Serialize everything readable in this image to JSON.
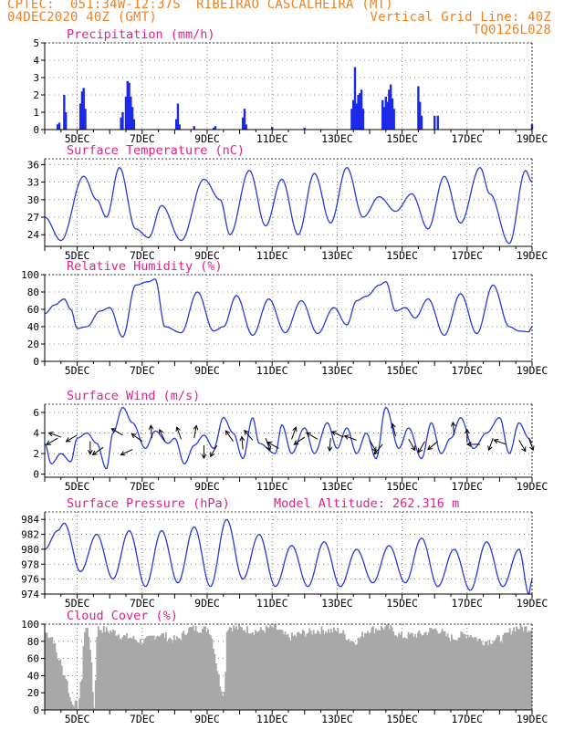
{
  "header": {
    "line1_left": "CPTEC:  051:34W-12:37S  RIBEIRAO CASCALHEIRA (MT)",
    "line2_left": "04DEC2020 40Z (GMT)",
    "line2_right": "Vertical Grid Line: 40Z",
    "line3_right": "TQ0126L028"
  },
  "colors": {
    "header": "#f08020",
    "panel_title": "#e0208c",
    "line": "#2a3ad8",
    "bar": "#1a2ae8",
    "cloud": "#a8a8a8",
    "arrow": "#000000"
  },
  "chart_data": [
    {
      "id": "precip",
      "type": "bar",
      "title": "Precipitation (mm/h)",
      "x_tick_labels": [
        "5DEC",
        "7DEC",
        "9DEC",
        "11DEC",
        "13DEC",
        "15DEC",
        "17DEC",
        "19DEC"
      ],
      "x_range_days": [
        4.0,
        19.0
      ],
      "ylim": [
        0,
        5
      ],
      "yticks": [
        0,
        1,
        2,
        3,
        4,
        5
      ],
      "bars": [
        [
          4.4,
          0.3
        ],
        [
          4.45,
          0.4
        ],
        [
          4.6,
          2.0
        ],
        [
          4.65,
          1.0
        ],
        [
          5.1,
          1.5
        ],
        [
          5.15,
          2.2
        ],
        [
          5.2,
          2.4
        ],
        [
          5.25,
          1.2
        ],
        [
          6.35,
          0.7
        ],
        [
          6.4,
          1.0
        ],
        [
          6.5,
          1.9
        ],
        [
          6.55,
          2.8
        ],
        [
          6.6,
          2.7
        ],
        [
          6.65,
          1.9
        ],
        [
          6.7,
          1.3
        ],
        [
          6.75,
          0.6
        ],
        [
          8.05,
          0.6
        ],
        [
          8.1,
          1.5
        ],
        [
          8.15,
          0.3
        ],
        [
          8.6,
          0.2
        ],
        [
          9.2,
          0.1
        ],
        [
          9.25,
          0.2
        ],
        [
          10.1,
          0.7
        ],
        [
          10.15,
          1.2
        ],
        [
          10.2,
          0.3
        ],
        [
          11.0,
          0.15
        ],
        [
          12.0,
          0.1
        ],
        [
          13.45,
          1.2
        ],
        [
          13.5,
          1.7
        ],
        [
          13.55,
          3.6
        ],
        [
          13.6,
          1.5
        ],
        [
          13.65,
          2.0
        ],
        [
          13.7,
          2.1
        ],
        [
          13.75,
          2.3
        ],
        [
          13.8,
          1.2
        ],
        [
          14.4,
          1.7
        ],
        [
          14.45,
          1.3
        ],
        [
          14.5,
          1.9
        ],
        [
          14.55,
          1.6
        ],
        [
          14.6,
          2.3
        ],
        [
          14.65,
          2.6
        ],
        [
          14.7,
          1.8
        ],
        [
          14.75,
          1.2
        ],
        [
          15.5,
          2.5
        ],
        [
          15.55,
          1.6
        ],
        [
          15.6,
          0.8
        ],
        [
          16.0,
          0.8
        ],
        [
          16.1,
          0.8
        ],
        [
          19.0,
          0.3
        ]
      ]
    },
    {
      "id": "temp",
      "type": "line",
      "title": "Surface Temperature (nC)",
      "x_tick_labels": [
        "5DEC",
        "7DEC",
        "9DEC",
        "11DEC",
        "13DEC",
        "15DEC",
        "17DEC",
        "19DEC"
      ],
      "x_range_days": [
        4.0,
        19.0
      ],
      "ylim": [
        22,
        37
      ],
      "yticks": [
        24,
        27,
        30,
        33,
        36
      ],
      "extrema": [
        [
          4.0,
          27
        ],
        [
          4.5,
          23
        ],
        [
          5.2,
          34
        ],
        [
          5.6,
          30
        ],
        [
          5.9,
          27
        ],
        [
          6.3,
          35.5
        ],
        [
          6.8,
          25
        ],
        [
          7.2,
          23.5
        ],
        [
          7.6,
          29
        ],
        [
          8.2,
          23
        ],
        [
          8.9,
          33.5
        ],
        [
          9.4,
          30
        ],
        [
          9.7,
          24
        ],
        [
          10.3,
          35
        ],
        [
          10.8,
          25.5
        ],
        [
          11.3,
          33.5
        ],
        [
          11.8,
          24
        ],
        [
          12.3,
          34.5
        ],
        [
          12.8,
          26
        ],
        [
          13.3,
          35.5
        ],
        [
          13.8,
          27
        ],
        [
          14.3,
          30.5
        ],
        [
          14.8,
          28
        ],
        [
          15.3,
          31
        ],
        [
          15.8,
          25
        ],
        [
          16.3,
          34
        ],
        [
          16.8,
          26
        ],
        [
          17.4,
          35.5
        ],
        [
          17.7,
          31
        ],
        [
          18.3,
          22.5
        ],
        [
          18.8,
          35
        ],
        [
          19.0,
          33
        ]
      ]
    },
    {
      "id": "rh",
      "type": "line",
      "title": "Relative Humidity (%)",
      "x_tick_labels": [
        "5DEC",
        "7DEC",
        "9DEC",
        "11DEC",
        "13DEC",
        "15DEC",
        "17DEC",
        "19DEC"
      ],
      "x_range_days": [
        4.0,
        19.0
      ],
      "ylim": [
        0,
        100
      ],
      "yticks": [
        0,
        20,
        40,
        60,
        80,
        100
      ],
      "extrema": [
        [
          4.0,
          55
        ],
        [
          4.3,
          65
        ],
        [
          4.6,
          72
        ],
        [
          4.8,
          60
        ],
        [
          5.0,
          38
        ],
        [
          5.3,
          40
        ],
        [
          5.7,
          58
        ],
        [
          6.0,
          62
        ],
        [
          6.4,
          28
        ],
        [
          6.8,
          88
        ],
        [
          7.2,
          92
        ],
        [
          7.4,
          95
        ],
        [
          7.7,
          40
        ],
        [
          8.2,
          33
        ],
        [
          8.7,
          80
        ],
        [
          9.2,
          35
        ],
        [
          9.5,
          40
        ],
        [
          9.9,
          76
        ],
        [
          10.4,
          30
        ],
        [
          10.9,
          72
        ],
        [
          11.4,
          33
        ],
        [
          11.9,
          70
        ],
        [
          12.4,
          32
        ],
        [
          12.9,
          62
        ],
        [
          13.3,
          42
        ],
        [
          13.6,
          70
        ],
        [
          13.9,
          75
        ],
        [
          14.3,
          88
        ],
        [
          14.5,
          92
        ],
        [
          14.8,
          58
        ],
        [
          15.1,
          62
        ],
        [
          15.4,
          50
        ],
        [
          15.8,
          72
        ],
        [
          16.3,
          30
        ],
        [
          16.8,
          78
        ],
        [
          17.3,
          32
        ],
        [
          17.8,
          88
        ],
        [
          18.3,
          40
        ],
        [
          18.6,
          35
        ],
        [
          18.9,
          34
        ],
        [
          19.0,
          40
        ]
      ]
    },
    {
      "id": "wind",
      "type": "line",
      "title": "Surface Wind (m/s)",
      "x_tick_labels": [
        "5DEC",
        "7DEC",
        "9DEC",
        "11DEC",
        "13DEC",
        "15DEC",
        "17DEC",
        "19DEC"
      ],
      "x_range_days": [
        4.0,
        19.0
      ],
      "ylim": [
        -0.3,
        6.8
      ],
      "yticks": [
        0,
        2,
        4,
        6
      ],
      "extrema": [
        [
          4.0,
          3.0
        ],
        [
          4.2,
          1.0
        ],
        [
          4.5,
          2.0
        ],
        [
          4.8,
          1.2
        ],
        [
          5.0,
          3.5
        ],
        [
          5.3,
          4.0
        ],
        [
          5.6,
          3.0
        ],
        [
          5.9,
          0.5
        ],
        [
          6.1,
          4.0
        ],
        [
          6.4,
          6.5
        ],
        [
          6.7,
          5.0
        ],
        [
          7.1,
          2.5
        ],
        [
          7.4,
          4.2
        ],
        [
          7.8,
          3.0
        ],
        [
          8.0,
          3.5
        ],
        [
          8.3,
          1.0
        ],
        [
          8.6,
          2.8
        ],
        [
          8.9,
          3.8
        ],
        [
          9.2,
          2.5
        ],
        [
          9.5,
          5.5
        ],
        [
          9.8,
          4.0
        ],
        [
          10.1,
          1.5
        ],
        [
          10.4,
          5.5
        ],
        [
          10.6,
          3.0
        ],
        [
          11.1,
          2.0
        ],
        [
          11.3,
          4.8
        ],
        [
          11.6,
          2.0
        ],
        [
          12.0,
          4.5
        ],
        [
          12.3,
          2.0
        ],
        [
          12.7,
          5.0
        ],
        [
          13.0,
          2.5
        ],
        [
          13.3,
          4.5
        ],
        [
          13.6,
          2.0
        ],
        [
          13.9,
          4.0
        ],
        [
          14.2,
          1.5
        ],
        [
          14.5,
          6.5
        ],
        [
          14.9,
          2.5
        ],
        [
          15.2,
          4.5
        ],
        [
          15.6,
          1.5
        ],
        [
          15.9,
          5.0
        ],
        [
          16.2,
          2.0
        ],
        [
          16.5,
          3.5
        ],
        [
          16.8,
          5.5
        ],
        [
          17.2,
          2.5
        ],
        [
          17.6,
          4.0
        ],
        [
          18.0,
          5.5
        ],
        [
          18.3,
          2.0
        ],
        [
          18.6,
          5.0
        ],
        [
          18.9,
          3.5
        ],
        [
          19.0,
          3.0
        ]
      ],
      "vectors": [
        [
          4.4,
          3.5,
          210
        ],
        [
          4.5,
          3.6,
          160
        ],
        [
          5.0,
          3.8,
          210
        ],
        [
          5.4,
          3.2,
          270
        ],
        [
          5.8,
          2.6,
          215
        ],
        [
          6.4,
          3.8,
          150
        ],
        [
          6.7,
          2.4,
          205
        ],
        [
          7.0,
          3.2,
          145
        ],
        [
          7.3,
          3.5,
          95
        ],
        [
          7.7,
          3.2,
          115
        ],
        [
          8.2,
          3.4,
          110
        ],
        [
          8.6,
          3.5,
          80
        ],
        [
          8.9,
          2.8,
          270
        ],
        [
          9.3,
          2.8,
          240
        ],
        [
          9.8,
          3.2,
          125
        ],
        [
          10.1,
          2.4,
          95
        ],
        [
          10.4,
          3.3,
          130
        ],
        [
          10.8,
          3.5,
          290
        ],
        [
          11.2,
          2.5,
          150
        ],
        [
          11.6,
          3.4,
          70
        ],
        [
          12.0,
          3.6,
          215
        ],
        [
          12.4,
          3.4,
          150
        ],
        [
          12.8,
          3.5,
          265
        ],
        [
          13.2,
          3.6,
          155
        ],
        [
          13.6,
          3.3,
          160
        ],
        [
          14.0,
          3.3,
          300
        ],
        [
          14.4,
          2.9,
          230
        ],
        [
          14.8,
          3.7,
          105
        ],
        [
          15.2,
          3.4,
          300
        ],
        [
          15.7,
          3.2,
          240
        ],
        [
          16.1,
          3.2,
          220
        ],
        [
          16.6,
          3.8,
          95
        ],
        [
          17.0,
          3.1,
          90
        ],
        [
          17.4,
          2.9,
          180
        ],
        [
          17.8,
          3.5,
          250
        ],
        [
          18.2,
          2.9,
          160
        ],
        [
          18.6,
          3.3,
          300
        ],
        [
          18.9,
          3.5,
          290
        ]
      ]
    },
    {
      "id": "pres",
      "type": "line",
      "title": "Surface Pressure (hPa)",
      "subtitle": "Model Altitude: 262.316 m",
      "x_tick_labels": [
        "5DEC",
        "7DEC",
        "9DEC",
        "11DEC",
        "13DEC",
        "15DEC",
        "17DEC",
        "19DEC"
      ],
      "x_range_days": [
        4.0,
        19.0
      ],
      "ylim": [
        974,
        985
      ],
      "yticks": [
        974,
        976,
        978,
        980,
        982,
        984
      ],
      "extrema": [
        [
          4.0,
          980
        ],
        [
          4.4,
          982.5
        ],
        [
          4.6,
          983.5
        ],
        [
          5.1,
          977
        ],
        [
          5.6,
          982
        ],
        [
          6.1,
          976
        ],
        [
          6.6,
          982.5
        ],
        [
          7.1,
          975
        ],
        [
          7.6,
          982.5
        ],
        [
          8.1,
          975.5
        ],
        [
          8.6,
          983
        ],
        [
          9.1,
          975
        ],
        [
          9.6,
          984
        ],
        [
          10.1,
          976
        ],
        [
          10.6,
          982
        ],
        [
          11.1,
          975
        ],
        [
          11.6,
          980.5
        ],
        [
          12.1,
          975
        ],
        [
          12.6,
          981
        ],
        [
          13.1,
          975
        ],
        [
          13.6,
          980
        ],
        [
          14.1,
          975.5
        ],
        [
          14.6,
          980.5
        ],
        [
          15.1,
          975.5
        ],
        [
          15.6,
          981.5
        ],
        [
          16.1,
          975
        ],
        [
          16.6,
          980
        ],
        [
          17.1,
          974.5
        ],
        [
          17.6,
          981
        ],
        [
          18.1,
          975
        ],
        [
          18.6,
          980
        ],
        [
          18.9,
          974
        ],
        [
          19.0,
          976
        ]
      ]
    },
    {
      "id": "cloud",
      "type": "area",
      "title": "Cloud Cover (%)",
      "x_tick_labels": [
        "5DEC",
        "7DEC",
        "9DEC",
        "11DEC",
        "13DEC",
        "15DEC",
        "17DEC",
        "19DEC"
      ],
      "x_range_days": [
        4.0,
        19.0
      ],
      "ylim": [
        0,
        100
      ],
      "yticks": [
        0,
        20,
        40,
        60,
        80,
        100
      ],
      "extrema": [
        [
          4.0,
          90
        ],
        [
          4.2,
          85
        ],
        [
          4.4,
          60
        ],
        [
          4.6,
          40
        ],
        [
          4.8,
          10
        ],
        [
          5.0,
          5
        ],
        [
          5.1,
          30
        ],
        [
          5.2,
          90
        ],
        [
          5.3,
          98
        ],
        [
          5.4,
          60
        ],
        [
          5.5,
          2
        ],
        [
          5.6,
          95
        ],
        [
          6.0,
          92
        ],
        [
          6.5,
          85
        ],
        [
          7.0,
          80
        ],
        [
          7.5,
          88
        ],
        [
          8.0,
          82
        ],
        [
          8.5,
          95
        ],
        [
          9.0,
          94
        ],
        [
          9.5,
          20
        ],
        [
          9.6,
          97
        ],
        [
          10.0,
          95
        ],
        [
          10.5,
          92
        ],
        [
          11.0,
          96
        ],
        [
          11.5,
          85
        ],
        [
          12.0,
          90
        ],
        [
          12.5,
          93
        ],
        [
          13.0,
          92
        ],
        [
          13.5,
          80
        ],
        [
          14.0,
          94
        ],
        [
          14.5,
          96
        ],
        [
          15.0,
          86
        ],
        [
          15.5,
          88
        ],
        [
          16.0,
          94
        ],
        [
          16.5,
          84
        ],
        [
          17.0,
          88
        ],
        [
          17.5,
          80
        ],
        [
          18.0,
          83
        ],
        [
          18.5,
          96
        ],
        [
          19.0,
          95
        ]
      ]
    }
  ]
}
